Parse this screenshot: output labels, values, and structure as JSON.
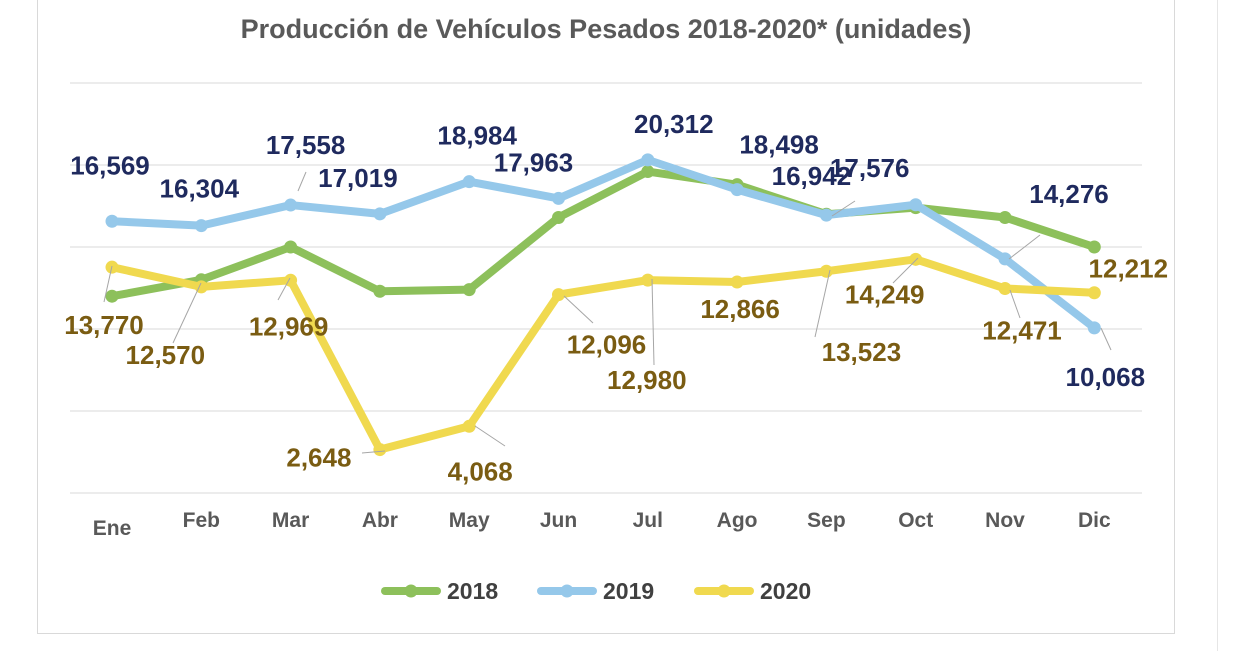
{
  "chart_data": {
    "type": "line",
    "title": "Producción de Vehículos Pesados 2018-2020* (unidades)",
    "xlabel": "",
    "ylabel": "",
    "ylim": [
      0,
      25000
    ],
    "grid": true,
    "legend_position": "bottom",
    "categories": [
      "Ene",
      "Feb",
      "Mar",
      "Abr",
      "May",
      "Jun",
      "Jul",
      "Ago",
      "Sep",
      "Oct",
      "Nov",
      "Dic"
    ],
    "series": [
      {
        "name": "2018",
        "color": "#8dc05b",
        "values": [
          12000,
          13000,
          15000,
          12300,
          12400,
          16800,
          19600,
          18800,
          17000,
          17400,
          16800,
          15000
        ],
        "labels": []
      },
      {
        "name": "2019",
        "color": "#95c8ea",
        "values": [
          16569,
          16304,
          17558,
          17019,
          18984,
          17963,
          20312,
          18498,
          16942,
          17576,
          14276,
          10068
        ],
        "labels": [
          "16,569",
          "16,304",
          "17,558",
          "17,019",
          "18,984",
          "17,963",
          "20,312",
          "18,498",
          "16,942",
          "17,576",
          "14,276",
          "10,068"
        ],
        "label_color": "#1f2a5e"
      },
      {
        "name": "2020",
        "color": "#f0d94f",
        "values": [
          13770,
          12570,
          12969,
          2648,
          4068,
          12096,
          12980,
          12866,
          13523,
          14249,
          12471,
          12212
        ],
        "labels": [
          "13,770",
          "12,570",
          "12,969",
          "2,648",
          "4,068",
          "12,096",
          "12,980",
          "12,866",
          "13,523",
          "14,249",
          "12,471",
          "12,212"
        ],
        "label_color": "#7a5c12"
      }
    ]
  }
}
